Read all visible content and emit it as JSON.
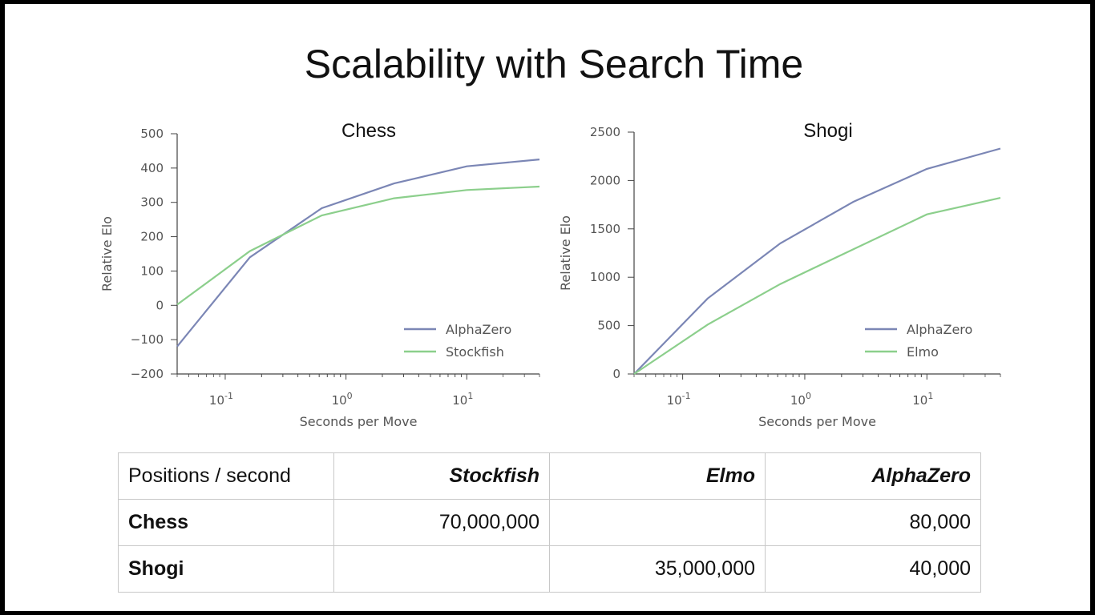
{
  "slide": {
    "title": "Scalability with Search Time"
  },
  "chart_data": [
    {
      "type": "line",
      "title": "Chess",
      "xlabel": "Seconds per Move",
      "ylabel": "Relative Elo",
      "x_scale": "log",
      "xlim": [
        0.04,
        40
      ],
      "ylim": [
        -200,
        500
      ],
      "yticks": [
        -200,
        -100,
        0,
        100,
        200,
        300,
        400,
        500
      ],
      "ytick_labels": [
        "−200",
        "−100",
        "0",
        "100",
        "200",
        "300",
        "400",
        "500"
      ],
      "xticks": [
        0.1,
        1,
        10
      ],
      "xtick_labels": [
        "10-1",
        "100",
        "101"
      ],
      "legend_position": "lower right",
      "x": [
        0.04,
        0.16,
        0.63,
        2.5,
        10,
        40
      ],
      "series": [
        {
          "name": "AlphaZero",
          "color": "#7b86b5",
          "values": [
            -120,
            140,
            283,
            355,
            405,
            425
          ]
        },
        {
          "name": "Stockfish",
          "color": "#8ccf8c",
          "values": [
            2,
            158,
            262,
            312,
            336,
            346
          ]
        }
      ]
    },
    {
      "type": "line",
      "title": "Shogi",
      "xlabel": "Seconds per Move",
      "ylabel": "Relative Elo",
      "x_scale": "log",
      "xlim": [
        0.04,
        40
      ],
      "ylim": [
        0,
        2500
      ],
      "yticks": [
        0,
        500,
        1000,
        1500,
        2000,
        2500
      ],
      "ytick_labels": [
        "0",
        "500",
        "1000",
        "1500",
        "2000",
        "2500"
      ],
      "xticks": [
        0.1,
        1,
        10
      ],
      "xtick_labels": [
        "10-1",
        "100",
        "101"
      ],
      "legend_position": "lower right",
      "x": [
        0.04,
        0.16,
        0.63,
        2.5,
        10,
        40
      ],
      "series": [
        {
          "name": "AlphaZero",
          "color": "#7b86b5",
          "values": [
            0,
            780,
            1350,
            1780,
            2120,
            2330
          ]
        },
        {
          "name": "Elmo",
          "color": "#8ccf8c",
          "values": [
            0,
            510,
            930,
            1290,
            1650,
            1820
          ]
        }
      ]
    }
  ],
  "table": {
    "header": [
      "Positions / second",
      "Stockfish",
      "Elmo",
      "AlphaZero"
    ],
    "rows": [
      {
        "label": "Chess",
        "cells": [
          "70,000,000",
          "",
          "80,000"
        ]
      },
      {
        "label": "Shogi",
        "cells": [
          "",
          "35,000,000",
          "40,000"
        ]
      }
    ]
  }
}
